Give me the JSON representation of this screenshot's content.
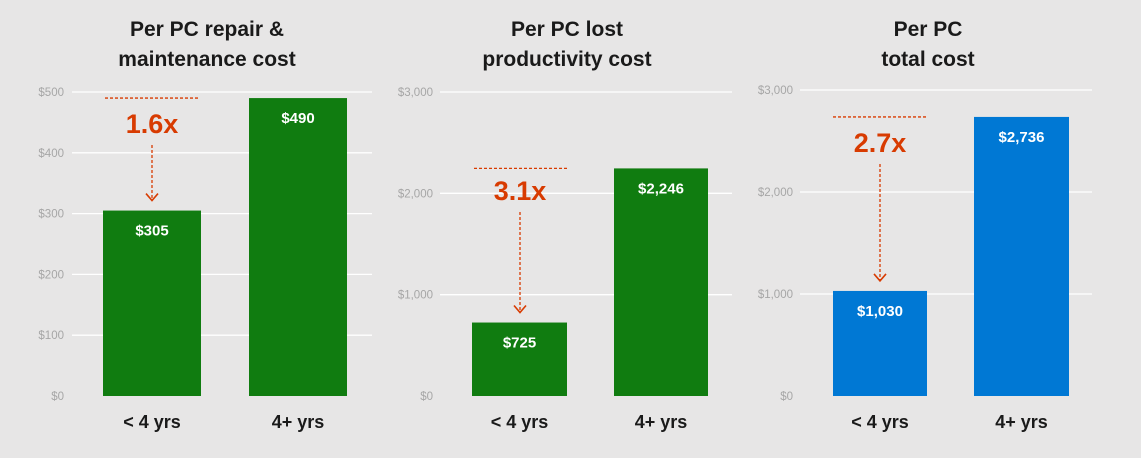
{
  "chart_data": [
    {
      "type": "bar",
      "title_lines": [
        "Per PC repair &",
        "maintenance cost"
      ],
      "categories": [
        "< 4 yrs",
        "4+ yrs"
      ],
      "values": [
        305,
        490
      ],
      "value_labels": [
        "$305",
        "$490"
      ],
      "ylim": [
        0,
        500
      ],
      "yticks": [
        0,
        100,
        200,
        300,
        400,
        500
      ],
      "ytick_labels": [
        "$0",
        "$100",
        "$200",
        "$300",
        "$400",
        "$500"
      ],
      "bar_color": "#107c10",
      "grid": true,
      "annotation": {
        "label": "1.6x",
        "from_value": 490,
        "to_value": 305
      }
    },
    {
      "type": "bar",
      "title_lines": [
        "Per PC lost",
        "productivity cost"
      ],
      "categories": [
        "< 4 yrs",
        "4+ yrs"
      ],
      "values": [
        725,
        2246
      ],
      "value_labels": [
        "$725",
        "$2,246"
      ],
      "ylim": [
        0,
        3000
      ],
      "yticks": [
        0,
        1000,
        2000,
        3000
      ],
      "ytick_labels": [
        "$0",
        "$1,000",
        "$2,000",
        "$3,000"
      ],
      "bar_color": "#107c10",
      "grid": true,
      "annotation": {
        "label": "3.1x",
        "from_value": 2246,
        "to_value": 725
      }
    },
    {
      "type": "bar",
      "title_lines": [
        "Per PC",
        "total cost"
      ],
      "categories": [
        "< 4 yrs",
        "4+ yrs"
      ],
      "values": [
        1030,
        2736
      ],
      "value_labels": [
        "$1,030",
        "$2,736"
      ],
      "ylim": [
        0,
        3000
      ],
      "yticks": [
        0,
        1000,
        2000,
        3000
      ],
      "ytick_labels": [
        "$0",
        "$1,000",
        "$2,000",
        "$3,000"
      ],
      "bar_color": "#0078d4",
      "grid": true,
      "annotation": {
        "label": "2.7x",
        "from_value": 2736,
        "to_value": 1030
      }
    }
  ],
  "colors": {
    "annotation": "#d83b01",
    "background": "#e7e6e6",
    "gridline": "#ffffff"
  }
}
